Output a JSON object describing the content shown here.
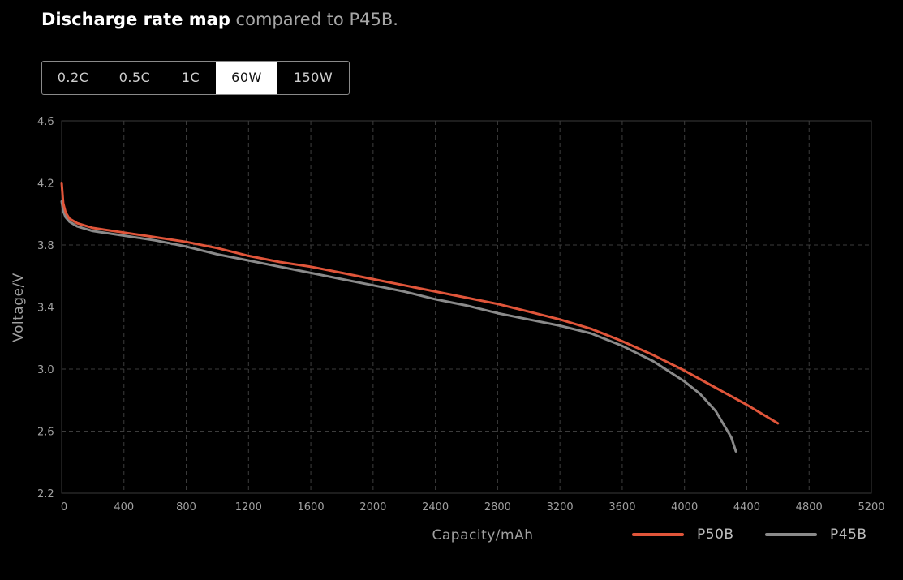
{
  "header": {
    "title_bold": "Discharge rate map",
    "title_light": "compared to P45B."
  },
  "tabs": [
    {
      "label": "0.2C",
      "active": false
    },
    {
      "label": "0.5C",
      "active": false
    },
    {
      "label": "1C",
      "active": false
    },
    {
      "label": "60W",
      "active": true
    },
    {
      "label": "150W",
      "active": false
    }
  ],
  "chart_data": {
    "type": "line",
    "xlabel": "Capacity/mAh",
    "ylabel": "Voltage/V",
    "xlim": [
      0,
      5200
    ],
    "ylim": [
      2.2,
      4.6
    ],
    "xticks": [
      0,
      400,
      800,
      1200,
      1600,
      2000,
      2400,
      2800,
      3200,
      3600,
      4000,
      4400,
      4800,
      5200
    ],
    "yticks": [
      2.2,
      2.6,
      3.0,
      3.4,
      3.8,
      4.2,
      4.6
    ],
    "grid": true,
    "legend_position": "bottom-right",
    "series": [
      {
        "name": "P50B",
        "color": "#e0553a",
        "x": [
          0,
          10,
          25,
          50,
          100,
          200,
          400,
          600,
          800,
          1000,
          1200,
          1400,
          1600,
          1800,
          2000,
          2200,
          2400,
          2600,
          2800,
          3000,
          3200,
          3400,
          3600,
          3800,
          4000,
          4200,
          4400,
          4600
        ],
        "y": [
          4.2,
          4.07,
          4.01,
          3.97,
          3.94,
          3.91,
          3.88,
          3.85,
          3.82,
          3.78,
          3.73,
          3.69,
          3.66,
          3.62,
          3.58,
          3.54,
          3.5,
          3.46,
          3.42,
          3.37,
          3.32,
          3.26,
          3.18,
          3.09,
          2.99,
          2.88,
          2.77,
          2.65
        ]
      },
      {
        "name": "P45B",
        "color": "#8a8a8a",
        "x": [
          0,
          10,
          25,
          50,
          100,
          200,
          400,
          600,
          800,
          1000,
          1200,
          1400,
          1600,
          1800,
          2000,
          2200,
          2400,
          2600,
          2800,
          3000,
          3200,
          3400,
          3600,
          3800,
          4000,
          4100,
          4200,
          4300,
          4330
        ],
        "y": [
          4.08,
          4.02,
          3.98,
          3.95,
          3.92,
          3.89,
          3.86,
          3.83,
          3.79,
          3.74,
          3.7,
          3.66,
          3.62,
          3.58,
          3.54,
          3.5,
          3.45,
          3.41,
          3.36,
          3.32,
          3.28,
          3.23,
          3.15,
          3.05,
          2.92,
          2.84,
          2.73,
          2.56,
          2.47
        ]
      }
    ]
  }
}
